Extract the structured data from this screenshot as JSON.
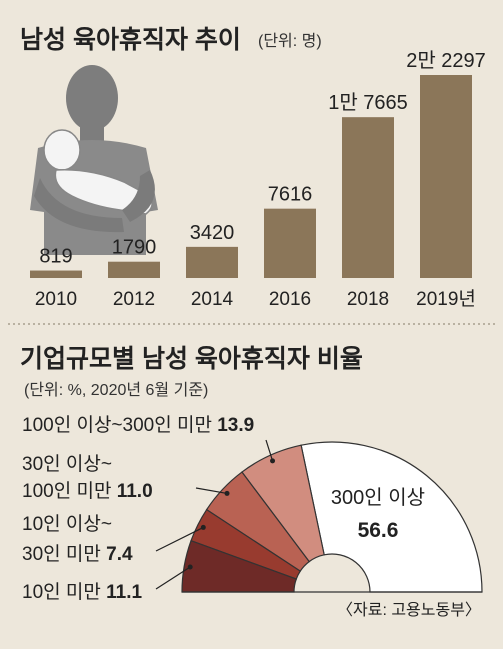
{
  "chart_data": [
    {
      "type": "bar",
      "title": "남성 육아휴직자 추이",
      "unit_note": "(단위: 명)",
      "categories": [
        "2010",
        "2012",
        "2014",
        "2016",
        "2018",
        "2019년"
      ],
      "values": [
        819,
        1790,
        3420,
        7616,
        17665,
        22297
      ],
      "value_labels": [
        "819",
        "1790",
        "3420",
        "7616",
        "1만 7665",
        "2만 2297"
      ],
      "ylim": [
        0,
        22297
      ],
      "grid": false,
      "colors": {
        "bar": "#8b7659"
      }
    },
    {
      "type": "pie",
      "subtype": "half-donut",
      "title": "기업규모별 남성 육아휴직자 비율",
      "unit_note": "(단위: %, 2020년 6월 기준)",
      "slices": [
        {
          "label": "300인 이상",
          "value": 56.6,
          "label_lines": [
            "300인 이상",
            "56.6"
          ],
          "color": "#ffffff"
        },
        {
          "label": "100인 이상~300인 미만",
          "value": 13.9,
          "label_lines": [
            "100인 이상~300인 미만 ",
            "13.9"
          ],
          "color": "#d18d7f"
        },
        {
          "label": "30인 이상~100인 미만",
          "value": 11.0,
          "label_lines": [
            "30인 이상~",
            "100인 미만 ",
            "11.0"
          ],
          "color": "#b96253"
        },
        {
          "label": "10인 이상~30인 미만",
          "value": 7.4,
          "label_lines": [
            "10인 이상~",
            "30인 미만 ",
            "7.4"
          ],
          "color": "#983b2f"
        },
        {
          "label": "10인 미만",
          "value": 11.1,
          "label_lines": [
            "10인 미만 ",
            "11.1"
          ],
          "color": "#6e2a27"
        }
      ]
    }
  ],
  "source": "〈자료: 고용노동부〉",
  "colors": {
    "background": "#ede7db",
    "divider": "#a89f8e",
    "figure": "#888888",
    "figure_light": "#f2f2f2"
  },
  "icons": {
    "illustration": "father-holding-baby-illustration"
  }
}
